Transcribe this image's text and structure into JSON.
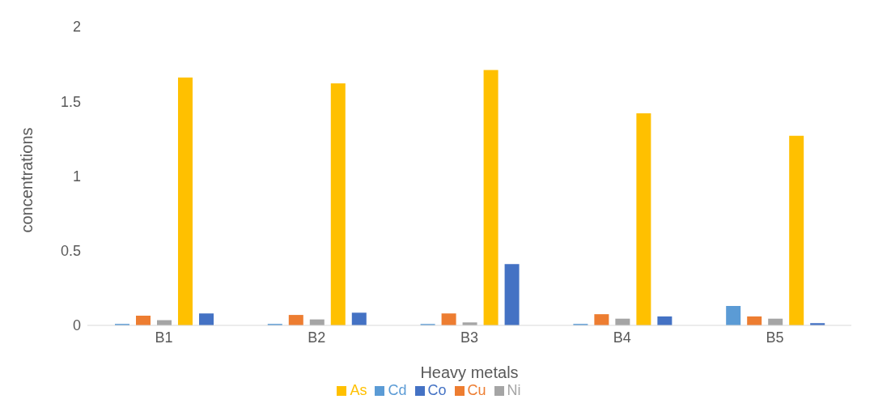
{
  "chart_data": {
    "type": "bar",
    "xlabel": "Heavy metals",
    "ylabel": "concentrations",
    "categories": [
      "B1",
      "B2",
      "B3",
      "B4",
      "B5"
    ],
    "series": [
      {
        "name": "Cd",
        "color": "#5b9bd5",
        "values": [
          0.01,
          0.01,
          0.01,
          0.01,
          0.13
        ]
      },
      {
        "name": "Cu",
        "color": "#ed7d31",
        "values": [
          0.065,
          0.07,
          0.08,
          0.075,
          0.06
        ]
      },
      {
        "name": "Ni",
        "color": "#a5a5a5",
        "values": [
          0.035,
          0.04,
          0.02,
          0.045,
          0.045
        ]
      },
      {
        "name": "As",
        "color": "#ffc000",
        "values": [
          1.66,
          1.62,
          1.71,
          1.42,
          1.27
        ]
      },
      {
        "name": "Co",
        "color": "#4472c4",
        "values": [
          0.08,
          0.085,
          0.41,
          0.06,
          0.015
        ]
      }
    ],
    "ylim": [
      0,
      2
    ],
    "yticks": [
      0,
      0.5,
      1,
      1.5,
      2
    ],
    "grid": false,
    "legend": "bottom"
  }
}
